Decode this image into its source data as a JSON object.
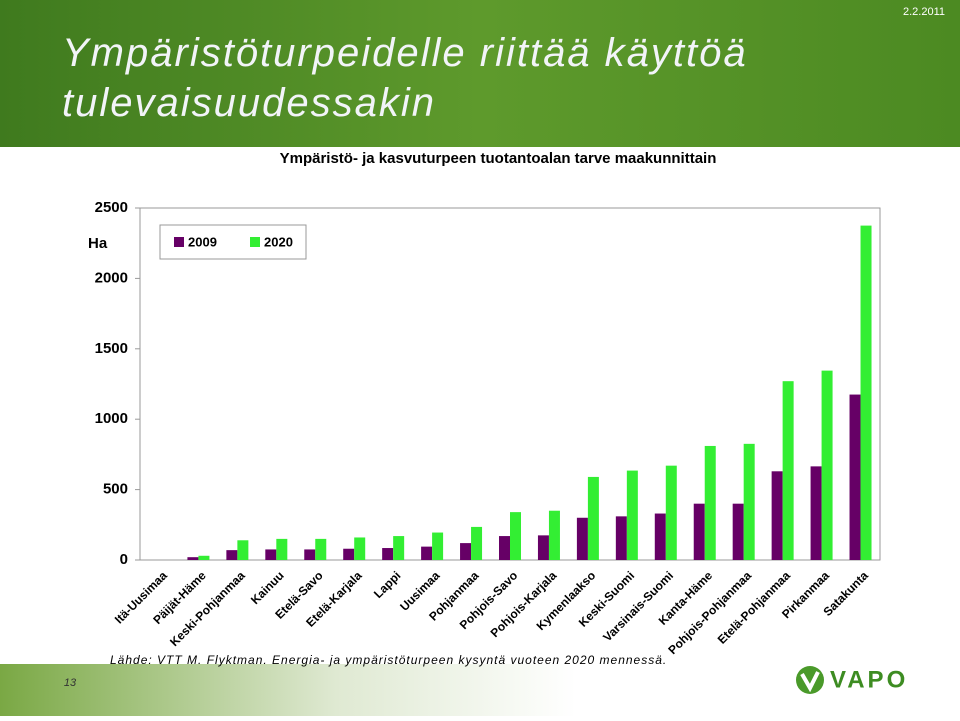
{
  "slide": {
    "title": "Ympäristöturpeidelle riittää käyttöä tulevaisuudessakin",
    "date": "2.2.2011",
    "source": "Lähde: VTT M. Flyktman. Energia- ja ympäristöturpeen kysyntä vuoteen 2020 mennessä.",
    "page_number": "13",
    "logo": "VAPO"
  },
  "chart_data": {
    "type": "bar",
    "title": "Ympäristö- ja kasvuturpeen tuotantoalan tarve maakunnittain",
    "y_label": "Ha",
    "categories": [
      "Itä-Uusimaa",
      "Päijät-Häme",
      "Keski-Pohjanmaa",
      "Kainuu",
      "Etelä-Savo",
      "Etelä-Karjala",
      "Lappi",
      "Uusimaa",
      "Pohjanmaa",
      "Pohjois-Savo",
      "Pohjois-Karjala",
      "Kymenlaakso",
      "Keski-Suomi",
      "Varsinais-Suomi",
      "Kanta-Häme",
      "Pohjois-Pohjanmaa",
      "Etelä-Pohjanmaa",
      "Pirkanmaa",
      "Satakunta"
    ],
    "series": [
      {
        "name": "2009",
        "color": "#660066",
        "values": [
          0,
          20,
          70,
          75,
          75,
          80,
          85,
          95,
          120,
          170,
          175,
          300,
          310,
          330,
          400,
          400,
          630,
          665,
          1175
        ]
      },
      {
        "name": "2020",
        "color": "#33ee33",
        "values": [
          0,
          30,
          140,
          150,
          150,
          160,
          170,
          195,
          235,
          340,
          350,
          590,
          635,
          670,
          810,
          825,
          1270,
          1345,
          2375
        ]
      }
    ],
    "ylim": [
      0,
      2500
    ],
    "yticks": [
      0,
      500,
      1000,
      1500,
      2000,
      2500
    ],
    "grid": false,
    "legend": "top-left"
  }
}
